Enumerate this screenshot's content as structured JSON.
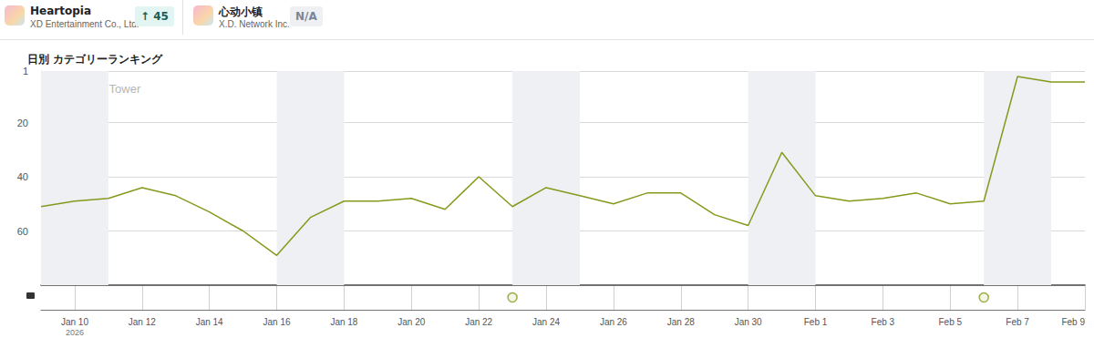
{
  "header": {
    "apps": [
      {
        "name": "Heartopia",
        "publisher": "XD Entertainment Co., Ltd.",
        "badge": "↑ 45"
      },
      {
        "name": "心动小镇",
        "publisher": "X.D. Network Inc.",
        "badge": "N/A"
      }
    ]
  },
  "chart_data": {
    "type": "line",
    "title": "日別 カテゴリーランキング",
    "watermark": "Sensor Tower",
    "x_year_label": "2026",
    "categories": [
      null,
      "Jan 10",
      null,
      "Jan 12",
      null,
      "Jan 14",
      null,
      "Jan 16",
      null,
      "Jan 18",
      null,
      "Jan 20",
      null,
      "Jan 22",
      null,
      "Jan 24",
      null,
      "Jan 26",
      null,
      "Jan 28",
      null,
      "Jan 30",
      null,
      "Feb 1",
      null,
      "Feb 3",
      null,
      "Feb 5",
      null,
      "Feb 7",
      null,
      "Feb 9"
    ],
    "values": [
      51,
      49,
      48,
      44,
      47,
      53,
      60,
      69,
      55,
      49,
      49,
      48,
      52,
      40,
      51,
      44,
      47,
      50,
      46,
      46,
      54,
      58,
      31,
      47,
      49,
      48,
      46,
      50,
      49,
      3,
      5,
      5
    ],
    "events": [
      false,
      false,
      false,
      false,
      false,
      false,
      false,
      false,
      false,
      false,
      false,
      false,
      false,
      false,
      true,
      false,
      false,
      false,
      false,
      false,
      false,
      false,
      false,
      false,
      false,
      false,
      false,
      false,
      true,
      false,
      false,
      false
    ],
    "color": "#86991c",
    "ylim": [
      80,
      1
    ],
    "yticks": [
      1,
      20,
      40,
      60
    ],
    "grid": true
  }
}
